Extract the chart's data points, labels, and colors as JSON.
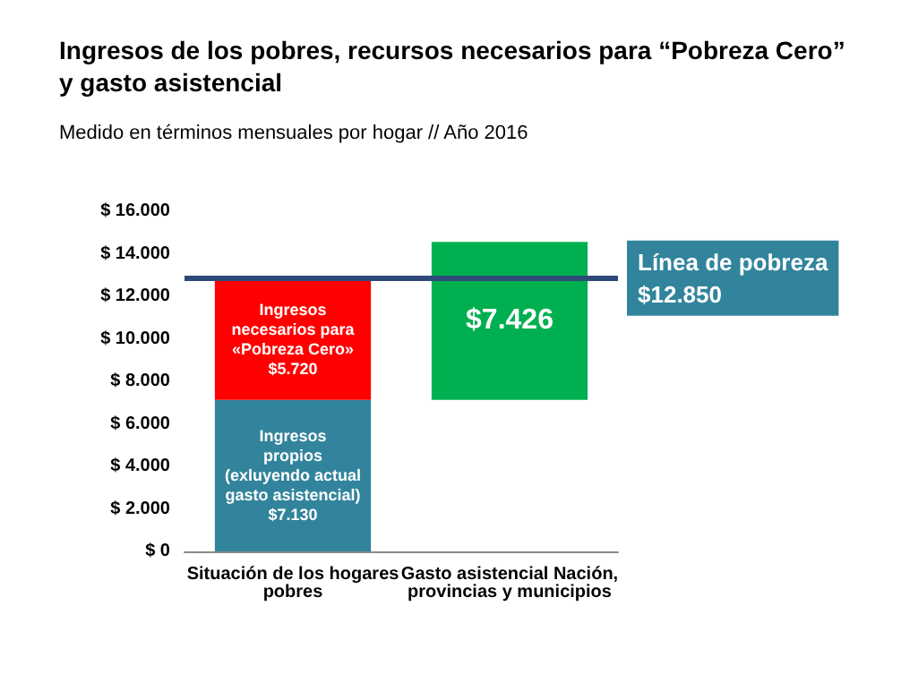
{
  "chart_data": {
    "type": "bar",
    "title": "Ingresos de los pobres, recursos necesarios para “Pobreza Cero”\ny gasto asistencial",
    "subtitle": "Medido en términos mensuales por hogar // Año 2016",
    "categories": [
      "Situación de los hogares\npobres",
      "Gasto asistencial Nación,\nprovincias y municipios"
    ],
    "series": [
      {
        "color": "#31849b",
        "base": [
          0,
          null
        ],
        "values": [
          7130,
          null
        ],
        "value_labels": [
          "Ingresos\npropios\n(exluyendo actual\ngasto asistencial)\n$7.130",
          null
        ]
      },
      {
        "color": "#ff0000",
        "base": [
          7130,
          null
        ],
        "values": [
          5720,
          null
        ],
        "value_labels": [
          "Ingresos\nnecesarios para\n«Pobreza Cero»\n$5.720",
          null
        ]
      },
      {
        "color": "#00b050",
        "base": [
          null,
          7130
        ],
        "values": [
          null,
          7426
        ],
        "value_labels": [
          null,
          "$7.426"
        ]
      }
    ],
    "ylim": [
      0,
      16000
    ],
    "yticks": [
      {
        "value": 0,
        "label": "$ 0"
      },
      {
        "value": 2000,
        "label": "$ 2.000"
      },
      {
        "value": 4000,
        "label": "$ 4.000"
      },
      {
        "value": 6000,
        "label": "$ 6.000"
      },
      {
        "value": 8000,
        "label": "$ 8.000"
      },
      {
        "value": 10000,
        "label": "$ 10.000"
      },
      {
        "value": 12000,
        "label": "$ 12.000"
      },
      {
        "value": 14000,
        "label": "$ 14.000"
      },
      {
        "value": 16000,
        "label": "$ 16.000"
      }
    ],
    "ref_lines": [
      {
        "axis": "y",
        "value": 12850,
        "label": "Línea de pobreza\n$12.850",
        "color": "#2e4a7a"
      }
    ],
    "grid": false
  }
}
